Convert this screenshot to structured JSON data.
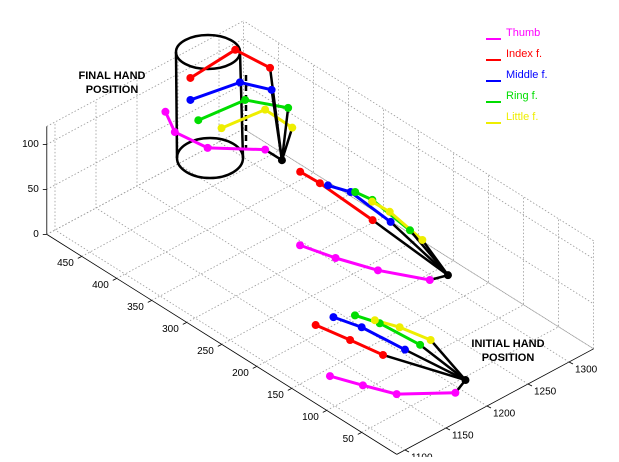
{
  "chart_data": {
    "type": "line3d",
    "xlim": [
      1090,
      1330
    ],
    "xticks": [
      1100,
      1150,
      1200,
      1250,
      1300
    ],
    "ylim": [
      0,
      500
    ],
    "yticks": [
      50,
      100,
      150,
      200,
      250,
      300,
      350,
      400,
      450
    ],
    "zlim": [
      0,
      120
    ],
    "zticks": [
      0,
      50,
      100
    ],
    "grid": true,
    "legend": "upper right",
    "annotations": [
      [
        "FINAL HAND",
        "POSITION"
      ],
      [
        "INITIAL HAND",
        "POSITION"
      ]
    ],
    "wrist": {
      "color": "#000000",
      "x": [
        1213,
        1283,
        1247
      ],
      "y": [
        46,
        153,
        348
      ],
      "z": [
        0,
        30,
        80
      ]
    },
    "series": [
      {
        "name": "Thumb",
        "color": "#ff00ff",
        "x": [
          1128,
          1140,
          1153,
          1193,
          null,
          1217,
          1227,
          1242,
          1266,
          null,
          1221,
          1206,
          1211,
          1247
        ],
        "y": [
          140,
          107,
          74,
          37,
          null,
          287,
          248,
          205,
          159,
          null,
          484,
          453,
          412,
          372
        ],
        "z": [
          0,
          0,
          0,
          0,
          null,
          30,
          30,
          30,
          30,
          null,
          80,
          80,
          80,
          80
        ]
      },
      {
        "name": "Index f.",
        "color": "#ff0000",
        "x": [
          1172,
          1179,
          1185,
          null,
          1294,
          1295,
          1291,
          null,
          1254,
          1313,
          1317
        ],
        "y": [
          212,
          171,
          131,
          null,
          377,
          350,
          270,
          null,
          487,
          492,
          447
        ],
        "z": [
          0,
          0,
          0,
          null,
          30,
          30,
          30,
          null,
          100,
          100,
          100
        ]
      },
      {
        "name": "Middle f.",
        "color": "#0000ff",
        "x": [
          1192,
          1200,
          1205,
          null,
          1298,
          1306,
          1301,
          null,
          1231,
          1282,
          1295
        ],
        "y": [
          210,
          179,
          123,
          null,
          342,
          319,
          256,
          null,
          460,
          449,
          419
        ],
        "z": [
          0,
          0,
          0,
          null,
          30,
          30,
          30,
          null,
          100,
          100,
          100
        ]
      },
      {
        "name": "Ring f.",
        "color": "#00dd00",
        "x": [
          1208,
          1216,
          1220,
          null,
          1309,
          1312,
          1305,
          null,
          1215,
          1267,
          1287
        ],
        "y": [
          198,
          172,
          119,
          null,
          316,
          295,
          233,
          null,
          430,
          424,
          386
        ],
        "z": [
          0,
          0,
          0,
          null,
          30,
          30,
          30,
          null,
          100,
          100,
          100
        ]
      },
      {
        "name": "Little f.",
        "color": "#eeee00",
        "x": [
          1216,
          1225,
          1232,
          null,
          1310,
          1311,
          1303,
          null,
          1222,
          1270,
          1269
        ],
        "y": [
          179,
          154,
          118,
          null,
          293,
          269,
          213,
          null,
          405,
          399,
          359
        ],
        "z": [
          0,
          0,
          0,
          null,
          30,
          30,
          30,
          null,
          100,
          100,
          100
        ]
      }
    ]
  }
}
